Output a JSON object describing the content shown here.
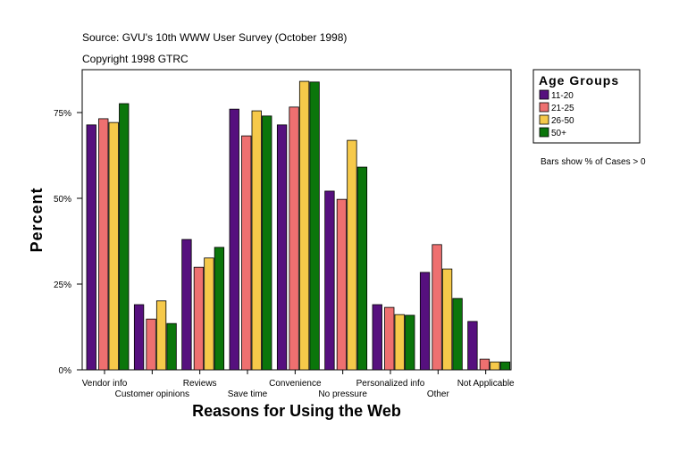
{
  "chart_data": {
    "type": "bar",
    "source": "Source: GVU's 10th WWW User Survey (October 1998)",
    "copyright": "Copyright 1998 GTRC",
    "ylabel": "Percent",
    "xlabel": "Reasons for Using the Web",
    "legend_title": "Age Groups",
    "note": "Bars show % of Cases > 0",
    "categories": [
      "Vendor info",
      "Customer opinions",
      "Reviews",
      "Save time",
      "Convenience",
      "No pressure",
      "Personalized info",
      "Other",
      "Not Applicable"
    ],
    "series": [
      {
        "name": "11-20",
        "color": "#56107e",
        "values": [
          71.4,
          19.0,
          38.0,
          76.0,
          71.4,
          52.1,
          19.0,
          28.4,
          14.1
        ]
      },
      {
        "name": "21-25",
        "color": "#ee7070",
        "values": [
          73.2,
          14.8,
          29.9,
          68.2,
          76.6,
          49.7,
          18.2,
          36.5,
          3.1
        ]
      },
      {
        "name": "26-50",
        "color": "#f6c94a",
        "values": [
          72.1,
          20.1,
          32.6,
          75.5,
          84.1,
          66.9,
          16.1,
          29.4,
          2.3
        ]
      },
      {
        "name": "50+",
        "color": "#0b760b",
        "values": [
          77.6,
          13.5,
          35.7,
          74.0,
          83.9,
          59.1,
          15.9,
          20.8,
          2.3
        ]
      }
    ],
    "ylim": [
      0,
      87.5
    ],
    "yticks": [
      {
        "value": 0,
        "label": "0%"
      },
      {
        "value": 25,
        "label": "25%"
      },
      {
        "value": 50,
        "label": "50%"
      },
      {
        "value": 75,
        "label": "75%"
      }
    ],
    "legend_position": "right"
  }
}
